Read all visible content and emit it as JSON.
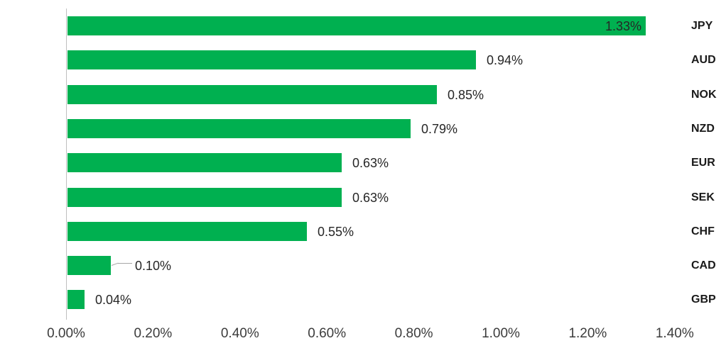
{
  "chart_data": {
    "type": "bar",
    "orientation": "horizontal",
    "title": "",
    "legend_position": "none",
    "grid": false,
    "bar_color": "#00b050",
    "axis_line_color": "#bfbfbf",
    "leader_line_color": "#a6a6a6",
    "label_text_color": "#262626",
    "categories": [
      "JPY",
      "AUD",
      "NOK",
      "NZD",
      "EUR",
      "SEK",
      "CHF",
      "CAD",
      "GBP"
    ],
    "values": [
      1.33,
      0.94,
      0.85,
      0.79,
      0.63,
      0.63,
      0.55,
      0.1,
      0.04
    ],
    "data_labels": [
      "1.33%",
      "0.94%",
      "0.85%",
      "0.79%",
      "0.63%",
      "0.63%",
      "0.55%",
      "0.10%",
      "0.04%"
    ],
    "label_placement": [
      "inside-end",
      "outside-end",
      "outside-end",
      "outside-end",
      "outside-end",
      "outside-end",
      "outside-end",
      "outside-end-leader",
      "outside-end"
    ],
    "x_axis": {
      "min": 0,
      "max": 1.4,
      "step": 0.2,
      "tick_labels": [
        "0.00%",
        "0.20%",
        "0.40%",
        "0.60%",
        "0.80%",
        "1.00%",
        "1.20%",
        "1.40%"
      ]
    }
  }
}
